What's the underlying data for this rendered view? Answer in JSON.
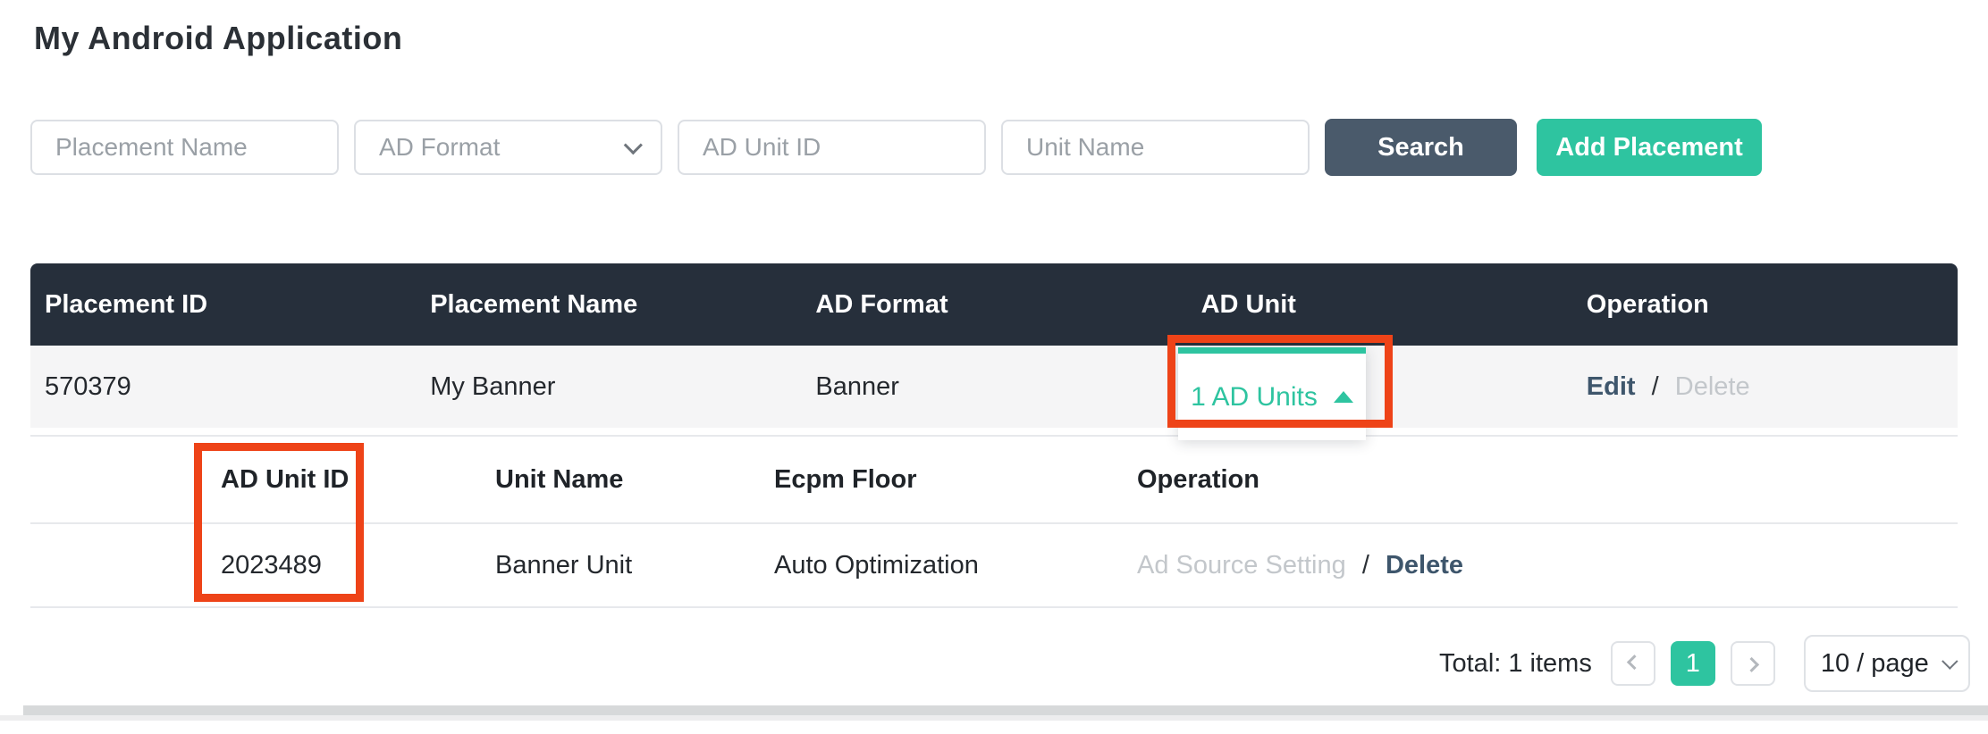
{
  "page": {
    "title": "My Android Application"
  },
  "filters": {
    "placement_name_placeholder": "Placement Name",
    "ad_format_placeholder": "AD Format",
    "ad_unit_id_placeholder": "AD Unit ID",
    "unit_name_placeholder": "Unit Name",
    "search_label": "Search",
    "add_placement_label": "Add Placement"
  },
  "table": {
    "headers": [
      "Placement ID",
      "Placement Name",
      "AD Format",
      "AD Unit",
      "Operation"
    ],
    "row": {
      "placement_id": "570379",
      "placement_name": "My Banner",
      "ad_format": "Banner",
      "ad_unit_toggle": "1 AD Units",
      "edit_label": "Edit",
      "separator": "/",
      "delete_label": "Delete"
    }
  },
  "sub_table": {
    "headers": [
      "AD Unit ID",
      "Unit Name",
      "Ecpm Floor",
      "Operation"
    ],
    "row": {
      "ad_unit_id": "2023489",
      "unit_name": "Banner Unit",
      "ecpm_floor": "Auto Optimization",
      "ad_source_setting_label": "Ad Source Setting",
      "separator": "/",
      "delete_label": "Delete"
    }
  },
  "pagination": {
    "total_text": "Total: 1 items",
    "current_page": "1",
    "page_size_label": "10 / page"
  },
  "colors": {
    "accent_teal": "#2ec4a0",
    "table_header_bg": "#262f3b",
    "search_button_bg": "#4a5a6b",
    "annotation_red": "#ee4318",
    "operation_link": "#3e566c",
    "disabled_text": "#c3c7cb",
    "row_bg": "#f5f5f6"
  }
}
